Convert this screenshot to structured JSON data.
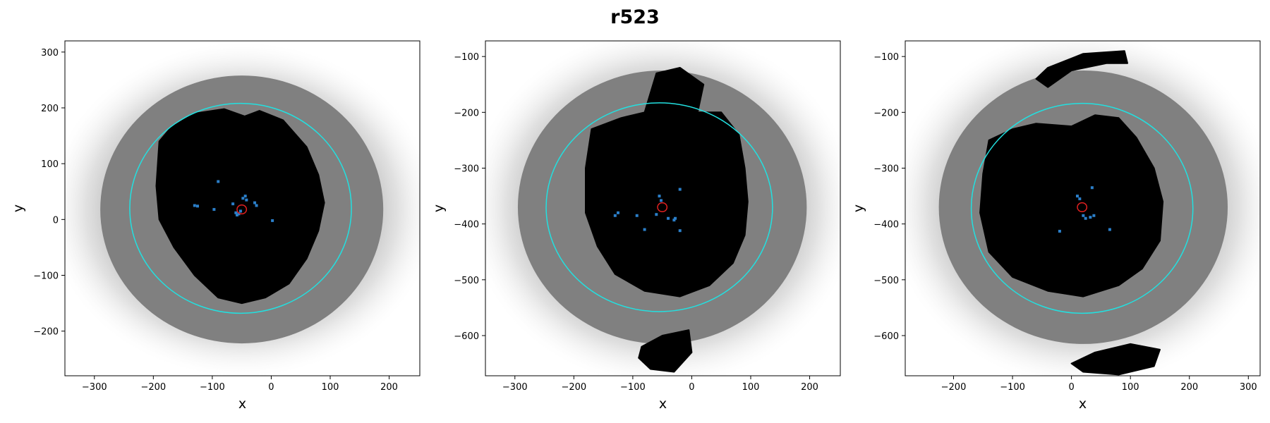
{
  "title": "r523",
  "chart_data": [
    {
      "type": "scatter",
      "xlabel": "x",
      "ylabel": "y",
      "xlim": [
        -350,
        252
      ],
      "ylim": [
        -280,
        320
      ],
      "xticks": [
        -300,
        -200,
        -100,
        0,
        100,
        200
      ],
      "yticks": [
        -200,
        -100,
        0,
        100,
        200,
        300
      ],
      "xtick_labels": [
        "−300",
        "−200",
        "−100",
        "0",
        "100",
        "200"
      ],
      "ytick_labels": [
        "−200",
        "−100",
        "0",
        "100",
        "200",
        "300"
      ],
      "halo": {
        "cx": -50,
        "cy": 18,
        "rx": 330,
        "ry": 300
      },
      "gray_region": {
        "cx": -50,
        "cy": 18,
        "r": 240
      },
      "black_region": [
        [
          -190,
          140
        ],
        [
          -170,
          165
        ],
        [
          -130,
          190
        ],
        [
          -80,
          198
        ],
        [
          -45,
          185
        ],
        [
          -20,
          195
        ],
        [
          20,
          178
        ],
        [
          60,
          130
        ],
        [
          80,
          80
        ],
        [
          90,
          30
        ],
        [
          80,
          -20
        ],
        [
          60,
          -70
        ],
        [
          30,
          -115
        ],
        [
          -10,
          -140
        ],
        [
          -50,
          -150
        ],
        [
          -90,
          -140
        ],
        [
          -130,
          -100
        ],
        [
          -165,
          -50
        ],
        [
          -190,
          0
        ],
        [
          -195,
          60
        ]
      ],
      "cyan_circle": {
        "cx": -52,
        "cy": 20,
        "rx": 188,
        "ry": 188
      },
      "red_circle": {
        "cx": -50,
        "cy": 18,
        "r": 8
      },
      "blue_points": [
        [
          -55,
          10
        ],
        [
          -52,
          15
        ],
        [
          -48,
          38
        ],
        [
          -44,
          42
        ],
        [
          -42,
          35
        ],
        [
          -28,
          30
        ],
        [
          -25,
          25
        ],
        [
          -65,
          28
        ],
        [
          -130,
          25
        ],
        [
          -125,
          24
        ],
        [
          -97,
          18
        ],
        [
          -90,
          68
        ],
        [
          2,
          -2
        ],
        [
          -58,
          8
        ],
        [
          -60,
          12
        ]
      ]
    },
    {
      "type": "scatter",
      "xlabel": "x",
      "ylabel": "y",
      "xlim": [
        -350,
        252
      ],
      "ylim": [
        -672,
        -72
      ],
      "xticks": [
        -300,
        -200,
        -100,
        0,
        100,
        200
      ],
      "yticks": [
        -600,
        -500,
        -400,
        -300,
        -200,
        -100
      ],
      "xtick_labels": [
        "−300",
        "−200",
        "−100",
        "0",
        "100",
        "200"
      ],
      "ytick_labels": [
        "−600",
        "−500",
        "−400",
        "−300",
        "−200",
        "−100"
      ],
      "halo": {
        "cx": -50,
        "cy": -370,
        "rx": 330,
        "ry": 320
      },
      "gray_region": {
        "cx": -50,
        "cy": -370,
        "r": 245
      },
      "black_region": [
        [
          -170,
          -230
        ],
        [
          -120,
          -210
        ],
        [
          -80,
          -200
        ],
        [
          -60,
          -130
        ],
        [
          -20,
          -120
        ],
        [
          20,
          -150
        ],
        [
          10,
          -200
        ],
        [
          50,
          -200
        ],
        [
          80,
          -240
        ],
        [
          90,
          -300
        ],
        [
          95,
          -360
        ],
        [
          90,
          -420
        ],
        [
          70,
          -470
        ],
        [
          30,
          -510
        ],
        [
          -20,
          -530
        ],
        [
          -80,
          -520
        ],
        [
          -130,
          -490
        ],
        [
          -160,
          -440
        ],
        [
          -180,
          -380
        ],
        [
          -180,
          -300
        ]
      ],
      "black_blob": [
        [
          -85,
          -620
        ],
        [
          -50,
          -600
        ],
        [
          -5,
          -590
        ],
        [
          0,
          -630
        ],
        [
          -30,
          -665
        ],
        [
          -70,
          -660
        ],
        [
          -90,
          -640
        ]
      ],
      "cyan_circle": {
        "cx": -55,
        "cy": -370,
        "rx": 192,
        "ry": 187
      },
      "red_circle": {
        "cx": -50,
        "cy": -370,
        "r": 8
      },
      "blue_points": [
        [
          -55,
          -350
        ],
        [
          -52,
          -358
        ],
        [
          -60,
          -383
        ],
        [
          -40,
          -390
        ],
        [
          -30,
          -393
        ],
        [
          -28,
          -390
        ],
        [
          -93,
          -385
        ],
        [
          -130,
          -385
        ],
        [
          -125,
          -380
        ],
        [
          -80,
          -410
        ],
        [
          -20,
          -412
        ],
        [
          -20,
          -338
        ]
      ]
    },
    {
      "type": "scatter",
      "xlabel": "x",
      "ylabel": "y",
      "xlim": [
        -282,
        320
      ],
      "ylim": [
        -672,
        -72
      ],
      "xticks": [
        -200,
        -100,
        0,
        100,
        200,
        300
      ],
      "yticks": [
        -600,
        -500,
        -400,
        -300,
        -200,
        -100
      ],
      "xtick_labels": [
        "−200",
        "−100",
        "0",
        "100",
        "200",
        "300"
      ],
      "ytick_labels": [
        "−600",
        "−500",
        "−400",
        "−300",
        "−200",
        "−100"
      ],
      "halo": {
        "cx": 20,
        "cy": -370,
        "rx": 330,
        "ry": 320
      },
      "gray_region": {
        "cx": 20,
        "cy": -370,
        "r": 245
      },
      "black_region": [
        [
          -140,
          -250
        ],
        [
          -100,
          -230
        ],
        [
          -60,
          -220
        ],
        [
          0,
          -225
        ],
        [
          40,
          -205
        ],
        [
          80,
          -210
        ],
        [
          110,
          -245
        ],
        [
          140,
          -300
        ],
        [
          155,
          -360
        ],
        [
          150,
          -430
        ],
        [
          120,
          -480
        ],
        [
          80,
          -510
        ],
        [
          20,
          -530
        ],
        [
          -40,
          -520
        ],
        [
          -100,
          -495
        ],
        [
          -140,
          -450
        ],
        [
          -155,
          -380
        ],
        [
          -150,
          -310
        ]
      ],
      "black_blob": [
        [
          -60,
          -140
        ],
        [
          -40,
          -120
        ],
        [
          20,
          -95
        ],
        [
          90,
          -90
        ],
        [
          95,
          -112
        ],
        [
          60,
          -112
        ],
        [
          0,
          -125
        ],
        [
          -40,
          -155
        ]
      ],
      "black_blob2": [
        [
          0,
          -650
        ],
        [
          40,
          -630
        ],
        [
          100,
          -615
        ],
        [
          150,
          -625
        ],
        [
          140,
          -655
        ],
        [
          80,
          -670
        ],
        [
          20,
          -665
        ]
      ],
      "cyan_circle": {
        "cx": 18,
        "cy": -372,
        "rx": 188,
        "ry": 188
      },
      "red_circle": {
        "cx": 18,
        "cy": -370,
        "r": 8
      },
      "blue_points": [
        [
          10,
          -350
        ],
        [
          14,
          -355
        ],
        [
          20,
          -385
        ],
        [
          24,
          -390
        ],
        [
          32,
          -388
        ],
        [
          38,
          -385
        ],
        [
          -20,
          -413
        ],
        [
          65,
          -410
        ],
        [
          35,
          -335
        ]
      ]
    }
  ]
}
